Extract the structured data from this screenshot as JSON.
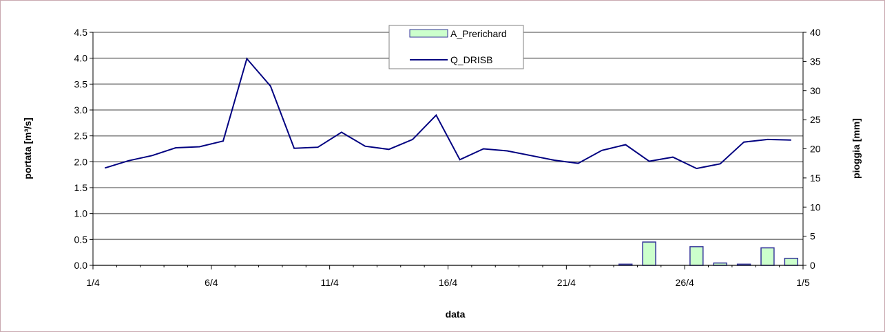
{
  "chart_data": {
    "type": "bar+line",
    "xlabel": "data",
    "ylabel_left": "portata [m³/s]",
    "ylabel_right": "pioggia [mm]",
    "x_tick_labels": [
      "1/4",
      "6/4",
      "11/4",
      "16/4",
      "21/4",
      "26/4",
      "1/5"
    ],
    "left_ylim": [
      0,
      4.5
    ],
    "left_ticks": [
      "0.0",
      "0.5",
      "1.0",
      "1.5",
      "2.0",
      "2.5",
      "3.0",
      "3.5",
      "4.0",
      "4.5"
    ],
    "right_ylim": [
      0,
      40
    ],
    "right_ticks": [
      "0",
      "5",
      "10",
      "15",
      "20",
      "25",
      "30",
      "35",
      "40"
    ],
    "grid": "horizontal",
    "legend_position": "top-center",
    "days": [
      "1/4",
      "2/4",
      "3/4",
      "4/4",
      "5/4",
      "6/4",
      "7/4",
      "8/4",
      "9/4",
      "10/4",
      "11/4",
      "12/4",
      "13/4",
      "14/4",
      "15/4",
      "16/4",
      "17/4",
      "18/4",
      "19/4",
      "20/4",
      "21/4",
      "22/4",
      "23/4",
      "24/4",
      "25/4",
      "26/4",
      "27/4",
      "28/4",
      "29/4",
      "30/4"
    ],
    "series": [
      {
        "name": "A_Prerichard",
        "kind": "bar",
        "axis": "right",
        "color": "#ccffcc",
        "edge_color": "#333399",
        "values": [
          0,
          0,
          0,
          0,
          0,
          0,
          0,
          0,
          0,
          0,
          0,
          0,
          0,
          0,
          0,
          0,
          0,
          0,
          0,
          0,
          0,
          0,
          0.2,
          4.0,
          0,
          3.2,
          0.4,
          0.2,
          3.0,
          1.2
        ]
      },
      {
        "name": "Q_DRISB",
        "kind": "line",
        "axis": "left",
        "color": "#000080",
        "values": [
          1.88,
          2.02,
          2.12,
          2.27,
          2.29,
          2.4,
          3.99,
          3.46,
          2.26,
          2.28,
          2.57,
          2.3,
          2.24,
          2.43,
          2.9,
          2.04,
          2.25,
          2.21,
          2.12,
          2.03,
          1.97,
          2.22,
          2.33,
          2.01,
          2.09,
          1.87,
          1.96,
          2.38,
          2.43,
          2.42
        ]
      }
    ]
  }
}
